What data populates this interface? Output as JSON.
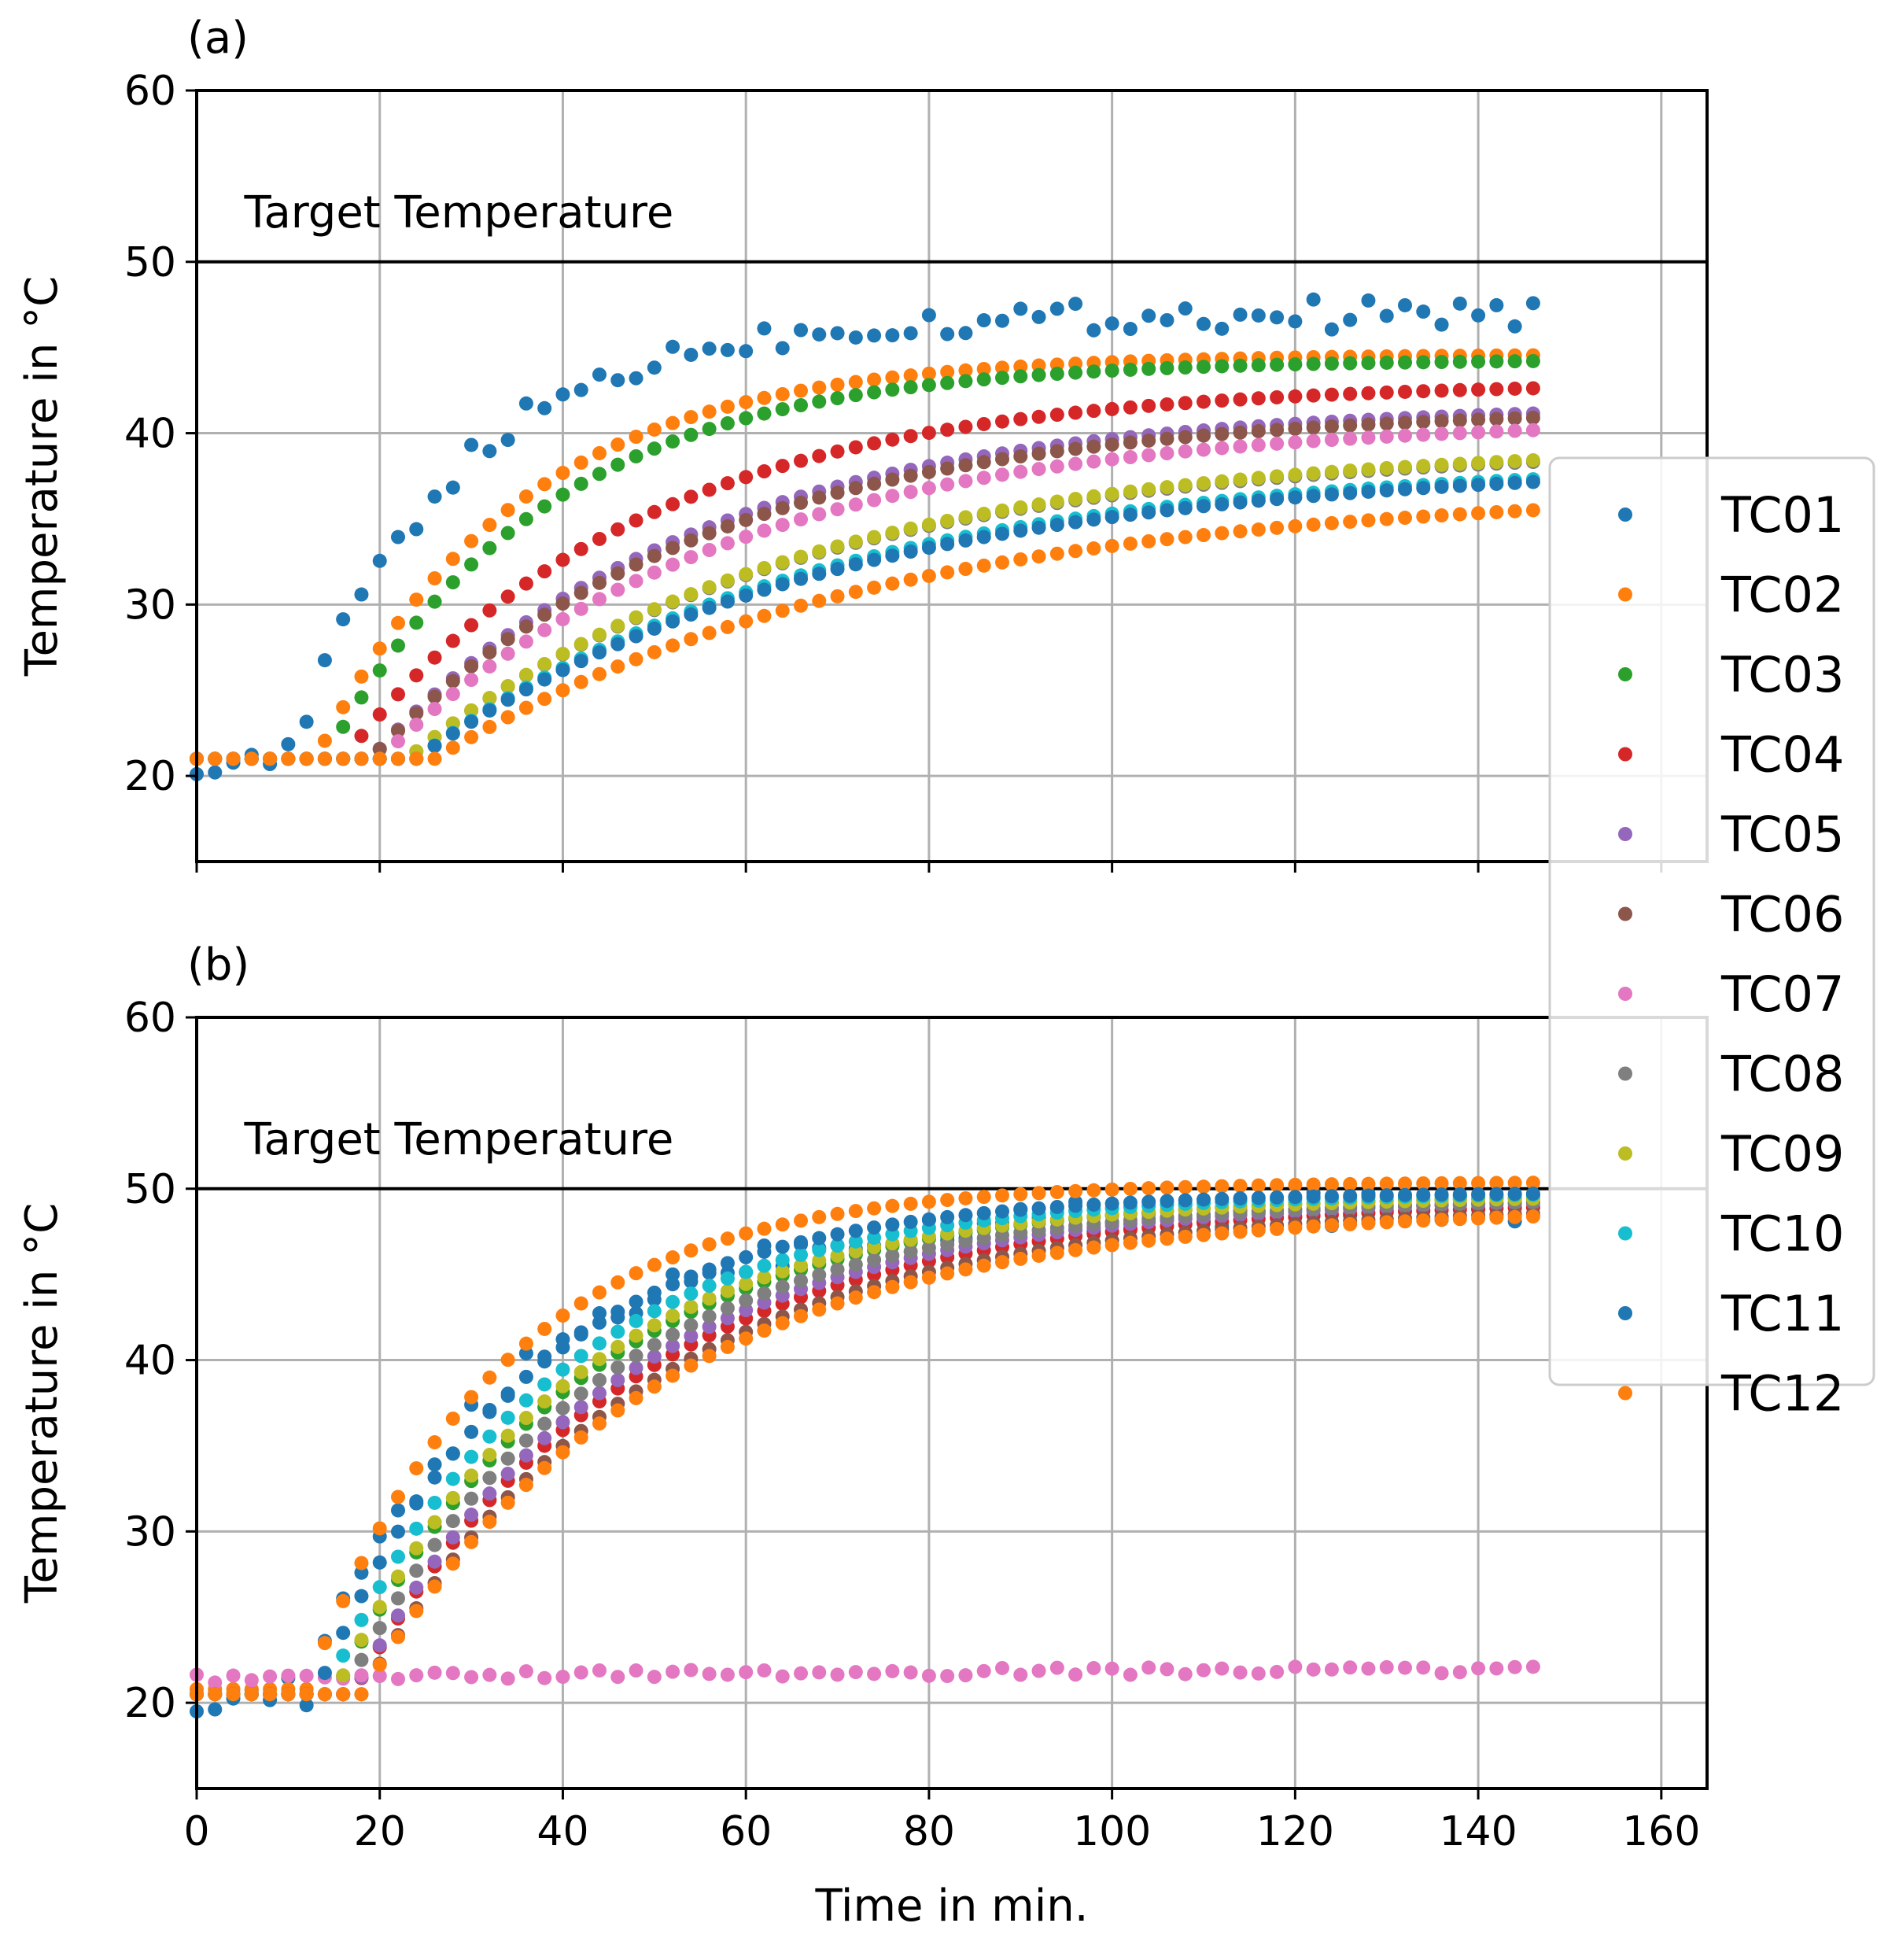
{
  "chart_data": [
    {
      "type": "scatter",
      "panel_label": "(a)",
      "xlabel": "",
      "ylabel": "Temperature in °C",
      "xlim": [
        0,
        165
      ],
      "ylim": [
        15,
        60
      ],
      "xticks": [
        0,
        20,
        40,
        60,
        80,
        100,
        120,
        140,
        160
      ],
      "xtick_labels_visible": false,
      "yticks": [
        20,
        30,
        40,
        50,
        60
      ],
      "grid": true,
      "reference_line": {
        "y": 50,
        "label": "Target Temperature"
      },
      "x_start": 0,
      "x_step": 2,
      "x_end": 146,
      "series": [
        {
          "name": "TC01",
          "color": "#1f77b4",
          "start": 21,
          "end": 47.0,
          "onset": 10,
          "tau": 18,
          "noise": 0.9
        },
        {
          "name": "TC02",
          "color": "#ff7f0e",
          "start": 21,
          "end": 44.6,
          "onset": 13,
          "tau": 22,
          "noise": 0
        },
        {
          "name": "TC03",
          "color": "#2ca02c",
          "start": 21,
          "end": 44.3,
          "onset": 14,
          "tau": 24,
          "noise": 0
        },
        {
          "name": "TC04",
          "color": "#d62728",
          "start": 21,
          "end": 43.0,
          "onset": 16,
          "tau": 32,
          "noise": 0
        },
        {
          "name": "TC05",
          "color": "#9467bd",
          "start": 21,
          "end": 41.7,
          "onset": 19,
          "tau": 35,
          "noise": 0
        },
        {
          "name": "TC06",
          "color": "#8c564b",
          "start": 21,
          "end": 41.5,
          "onset": 19,
          "tau": 36,
          "noise": 0
        },
        {
          "name": "TC07",
          "color": "#e377c2",
          "start": 21,
          "end": 40.9,
          "onset": 20,
          "tau": 38,
          "noise": 0
        },
        {
          "name": "TC08",
          "color": "#7f7f7f",
          "start": 21,
          "end": 39.3,
          "onset": 23,
          "tau": 42,
          "noise": 0
        },
        {
          "name": "TC09",
          "color": "#bcbd22",
          "start": 21,
          "end": 39.4,
          "onset": 23,
          "tau": 42,
          "noise": 0
        },
        {
          "name": "TC10",
          "color": "#17becf",
          "start": 21,
          "end": 38.4,
          "onset": 24,
          "tau": 44,
          "noise": 0
        },
        {
          "name": "TC11",
          "color": "#1f77b4",
          "start": 21,
          "end": 38.3,
          "onset": 24,
          "tau": 45,
          "noise": 0
        },
        {
          "name": "TC12",
          "color": "#ff7f0e",
          "start": 21,
          "end": 36.8,
          "onset": 26,
          "tau": 48,
          "noise": 0
        }
      ]
    },
    {
      "type": "scatter",
      "panel_label": "(b)",
      "xlabel": "Time in min.",
      "ylabel": "Temperature in °C",
      "xlim": [
        0,
        165
      ],
      "ylim": [
        15,
        60
      ],
      "xticks": [
        0,
        20,
        40,
        60,
        80,
        100,
        120,
        140,
        160
      ],
      "xtick_labels_visible": true,
      "yticks": [
        20,
        30,
        40,
        50,
        60
      ],
      "grid": true,
      "reference_line": {
        "y": 50,
        "label": "Target Temperature"
      },
      "x_start": 0,
      "x_step": 2,
      "x_end": 146,
      "series": [
        {
          "name": "TC01",
          "color": "#1f77b4",
          "start": 20.5,
          "end": 49.0,
          "onset": 12,
          "tau": 22,
          "noise": 1.0
        },
        {
          "name": "TC02",
          "color": "#ff7f0e",
          "start": 20.8,
          "end": 50.4,
          "onset": 12,
          "tau": 21,
          "noise": 0
        },
        {
          "name": "TC03",
          "color": "#2ca02c",
          "start": 20.5,
          "end": 49.7,
          "onset": 15,
          "tau": 27,
          "noise": 0
        },
        {
          "name": "TC04",
          "color": "#d62728",
          "start": 20.5,
          "end": 49.3,
          "onset": 17,
          "tau": 30,
          "noise": 0
        },
        {
          "name": "TC05",
          "color": "#9467bd",
          "start": 20.5,
          "end": 49.5,
          "onset": 17,
          "tau": 29,
          "noise": 0
        },
        {
          "name": "TC06",
          "color": "#8c564b",
          "start": 20.5,
          "end": 49.0,
          "onset": 18,
          "tau": 31,
          "noise": 0
        },
        {
          "name": "TC07",
          "color": "#e377c2",
          "start": 21.4,
          "end": 22.2,
          "onset": 0,
          "tau": 120,
          "noise": 0.25
        },
        {
          "name": "TC08",
          "color": "#7f7f7f",
          "start": 20.5,
          "end": 49.5,
          "onset": 16,
          "tau": 28,
          "noise": 0
        },
        {
          "name": "TC09",
          "color": "#bcbd22",
          "start": 20.5,
          "end": 49.6,
          "onset": 15,
          "tau": 26,
          "noise": 0
        },
        {
          "name": "TC10",
          "color": "#17becf",
          "start": 20.5,
          "end": 49.8,
          "onset": 14,
          "tau": 25,
          "noise": 0
        },
        {
          "name": "TC11",
          "color": "#1f77b4",
          "start": 20.5,
          "end": 49.8,
          "onset": 13,
          "tau": 23,
          "noise": 0
        },
        {
          "name": "TC12",
          "color": "#ff7f0e",
          "start": 20.5,
          "end": 48.9,
          "onset": 18,
          "tau": 32,
          "noise": 0
        }
      ]
    }
  ],
  "legend": {
    "placement": "right",
    "entries": [
      {
        "label": "TC01",
        "color": "#1f77b4"
      },
      {
        "label": "TC02",
        "color": "#ff7f0e"
      },
      {
        "label": "TC03",
        "color": "#2ca02c"
      },
      {
        "label": "TC04",
        "color": "#d62728"
      },
      {
        "label": "TC05",
        "color": "#9467bd"
      },
      {
        "label": "TC06",
        "color": "#8c564b"
      },
      {
        "label": "TC07",
        "color": "#e377c2"
      },
      {
        "label": "TC08",
        "color": "#7f7f7f"
      },
      {
        "label": "TC09",
        "color": "#bcbd22"
      },
      {
        "label": "TC10",
        "color": "#17becf"
      },
      {
        "label": "TC11",
        "color": "#1f77b4"
      },
      {
        "label": "TC12",
        "color": "#ff7f0e"
      }
    ]
  },
  "colors": {
    "grid": "#b0b0b0",
    "axis": "#000000",
    "reference_line": "#000000"
  }
}
